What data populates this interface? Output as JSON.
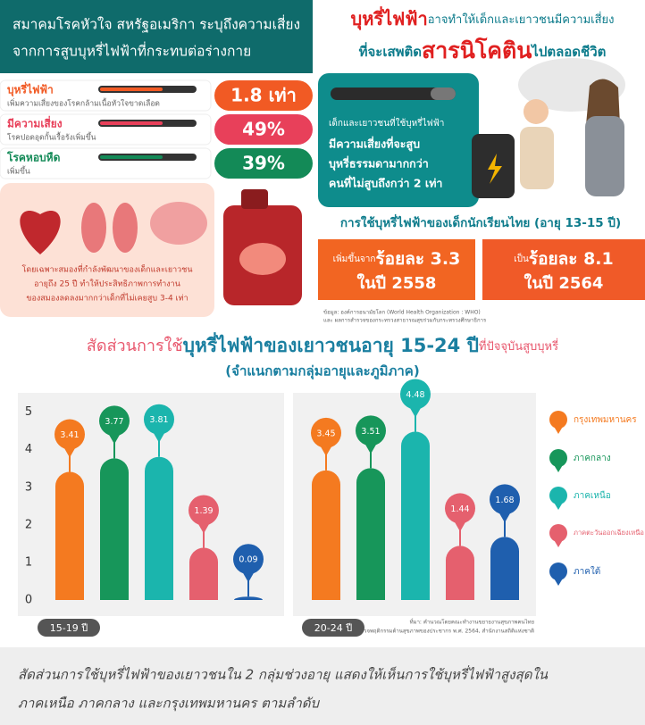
{
  "left_heading": [
    "สมาคมโรคหัวใจ สหรัฐอเมริกา ระบุถึงความเสี่ยง",
    "จากการสูบบุหรี่ไฟฟ้าที่กระทบต่อร่างกาย"
  ],
  "risks": [
    {
      "title": "บุหรี่ไฟฟ้า",
      "desc": "เพิ่มความเสี่ยงของโรคกล้ามเนื้อหัวใจขาดเลือด",
      "value": "1.8 เท่า"
    },
    {
      "title": "มีความเสี่ยง",
      "desc": "โรคปอดอุดกั้นเรื้อรังเพิ่มขึ้น",
      "value": "49%"
    },
    {
      "title": "โรคหอบหืด",
      "desc": "เพิ่มขึ้น",
      "value": "39%"
    }
  ],
  "brain_note": [
    "โดยเฉพาะสมองที่กำลังพัฒนาของเด็กและเยาวชน",
    "อายุถึง 25 ปี ทำให้ประสิทธิภาพการทำงาน",
    "ของสมองลดลงมากกว่าเด็กที่ไม่เคยสูบ 3-4 เท่า"
  ],
  "headline": {
    "a": "บุหรี่ไฟฟ้า",
    "b": "อาจทำให้เด็กและเยาวชนมีความเสี่ยง",
    "c": "ที่จะเสพติด",
    "d": "สารนิโคติน",
    "e": "ไปตลอดชีวิต"
  },
  "teal_box": [
    "เด็กและเยาวชนที่ใช้บุหรี่ไฟฟ้า",
    "มีความเสี่ยงที่จะสูบ",
    "บุหรี่ธรรมดามากกว่า",
    "คนที่ไม่สูบถึงกว่า 2 เท่า"
  ],
  "thai_students": {
    "title": "การใช้บุหรี่ไฟฟ้าของเด็กนักเรียนไทย (อายุ 13-15 ปี)",
    "boxes": [
      {
        "prefix": "เพิ่มขึ้นจาก",
        "value": "ร้อยละ 3.3",
        "year": "ในปี 2558"
      },
      {
        "prefix": "เป็น",
        "value": "ร้อยละ 8.1",
        "year": "ในปี 2564"
      }
    ],
    "source": [
      "ข้อมูล: องค์การอนามัยโลก (World Health Organization : WHO)",
      "และ ผลการสำรวจของกระทรวงสาธารณสุขร่วมกับกระทรวงศึกษาธิการ"
    ]
  },
  "chart_data": {
    "type": "bar",
    "title": {
      "a": "สัดส่วนการใช้",
      "b": "บุหรี่ไฟฟ้าของเยาวชนอายุ 15-24 ปี",
      "c": "ที่ปัจจุบันสูบบุหรี่"
    },
    "subtitle": "(จำแนกตามกลุ่มอายุและภูมิภาค)",
    "groups": [
      "15-19 ปี",
      "20-24 ปี"
    ],
    "series": [
      {
        "name": "กรุงเทพมหานคร",
        "color": "#f47a20",
        "values": [
          3.41,
          3.45
        ]
      },
      {
        "name": "ภาคกลาง",
        "color": "#17965a",
        "values": [
          3.77,
          3.51
        ]
      },
      {
        "name": "ภาคเหนือ",
        "color": "#1bb5ad",
        "values": [
          3.81,
          4.48
        ]
      },
      {
        "name": "ภาคตะวันออกเฉียงเหนือ",
        "color": "#e5606e",
        "values": [
          1.39,
          1.44
        ]
      },
      {
        "name": "ภาคใต้",
        "color": "#1f5fae",
        "values": [
          0.09,
          1.68
        ]
      }
    ],
    "ylim": [
      0,
      5.3
    ],
    "yticks": [
      0,
      1,
      2,
      3,
      4,
      5
    ],
    "source": [
      "ที่มา: คำนวณโดยคณะทำงานขยายงานสุขภาพคนไทย",
      "จากข้อมูลสำรวจพฤติกรรมด้านสุขภาพของประชากร พ.ศ. 2564, สำนักงานสถิติแห่งชาติ"
    ]
  },
  "footer": [
    "สัดส่วนการใช้บุหรี่ไฟฟ้าของเยาวชนใน 2 กลุ่มช่วงอายุ แสดงให้เห็นการใช้บุหรี่ไฟฟ้าสูงสุดใน",
    "ภาคเหนือ ภาคกลาง และกรุงเทพมหานคร ตามลำดับ"
  ]
}
